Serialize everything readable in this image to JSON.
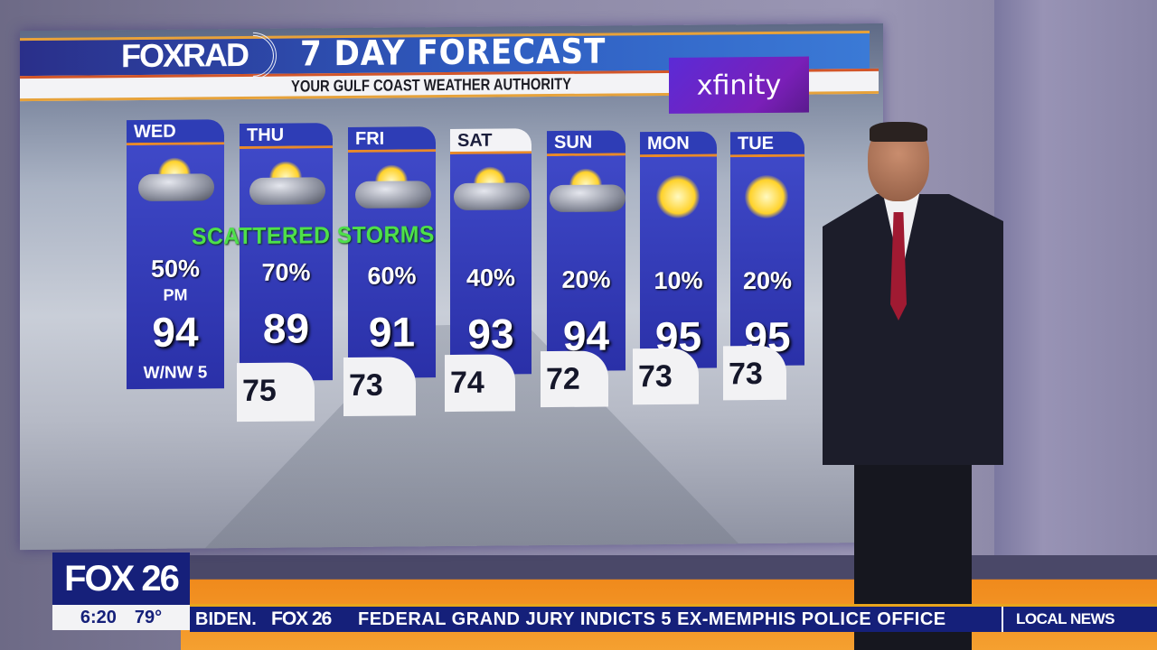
{
  "graphic": {
    "brand": "FOXRAD",
    "title": "7 DAY FORECAST",
    "subtitle": "YOUR GULF COAST WEATHER AUTHORITY",
    "sponsor": "xfinity",
    "banner": "SCATTERED STORMS",
    "days": [
      {
        "day": "WED",
        "icon": "sun-storm-cloud-icon",
        "precip": "50%",
        "precip_note": "PM",
        "high": "94",
        "low": "",
        "wind": "W/NW 5"
      },
      {
        "day": "THU",
        "icon": "sun-storm-cloud-icon",
        "precip": "70%",
        "high": "89",
        "low": "75"
      },
      {
        "day": "FRI",
        "icon": "sun-storm-cloud-icon",
        "precip": "60%",
        "high": "91",
        "low": "73"
      },
      {
        "day": "SAT",
        "icon": "sun-storm-cloud-icon",
        "precip": "40%",
        "high": "93",
        "low": "74"
      },
      {
        "day": "SUN",
        "icon": "sun-cloud-icon",
        "precip": "20%",
        "high": "94",
        "low": "72"
      },
      {
        "day": "MON",
        "icon": "sunny-icon",
        "precip": "10%",
        "high": "95",
        "low": "73"
      },
      {
        "day": "TUE",
        "icon": "sunny-icon",
        "precip": "20%",
        "high": "95",
        "low": "73"
      }
    ]
  },
  "bug": {
    "station": "FOX 26",
    "time": "6:20",
    "temp": "79°"
  },
  "ticker": {
    "lead": "BIDEN.",
    "logo": "FOX 26",
    "headline": "FEDERAL GRAND JURY INDICTS 5 EX-MEMPHIS POLICE OFFICE",
    "section": "LOCAL NEWS"
  },
  "colors": {
    "banner": "#4ee04a",
    "day_panel": "#2e3db6",
    "ticker": "#15207a",
    "ticker_accent": "#e8a51c",
    "sponsor": "#6a24c8"
  }
}
